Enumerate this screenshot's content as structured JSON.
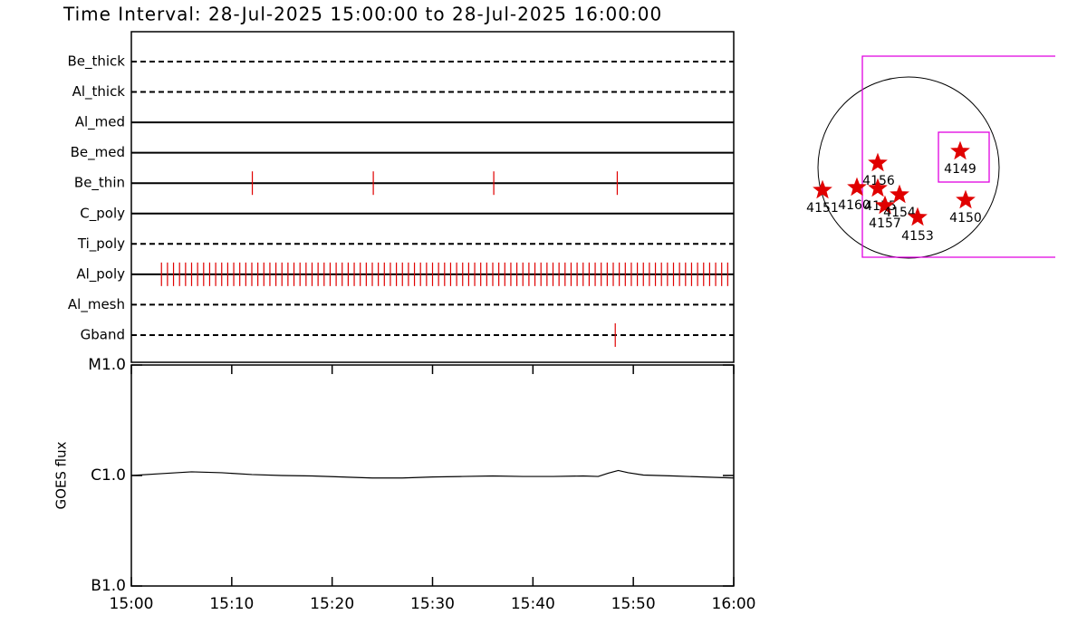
{
  "title": "Time Interval: 28-Jul-2025 15:00:00 to 28-Jul-2025 16:00:00",
  "chart_data": [
    {
      "type": "timeline",
      "color": "#e00000",
      "xlim": [
        0,
        60
      ],
      "rows": [
        {
          "name": "Be_thick",
          "line": "dashed",
          "events": []
        },
        {
          "name": "Al_thick",
          "line": "dashed",
          "events": []
        },
        {
          "name": "Al_med",
          "line": "solid",
          "events": []
        },
        {
          "name": "Be_med",
          "line": "solid",
          "events": []
        },
        {
          "name": "Be_thin",
          "line": "solid",
          "events": [
            12.05,
            24.1,
            36.1,
            48.4
          ]
        },
        {
          "name": "C_poly",
          "line": "solid",
          "events": []
        },
        {
          "name": "Ti_poly",
          "line": "dashed",
          "events": []
        },
        {
          "name": "Al_poly",
          "line": "solid",
          "events": [
            3,
            3.6,
            4.2,
            4.8,
            5.4,
            6,
            6.6,
            7.2,
            7.8,
            8.4,
            9,
            9.6,
            10.2,
            10.8,
            11.4,
            12,
            12.6,
            13.2,
            13.8,
            14.4,
            15,
            15.6,
            16.2,
            16.8,
            17.4,
            18,
            18.6,
            19.2,
            19.8,
            20.4,
            21,
            21.6,
            22.2,
            22.8,
            23.4,
            24,
            24.6,
            25.2,
            25.8,
            26.4,
            27,
            27.6,
            28.2,
            28.8,
            29.4,
            30,
            30.6,
            31.2,
            31.8,
            32.4,
            33,
            33.6,
            34.2,
            34.8,
            35.4,
            36,
            36.6,
            37.2,
            37.8,
            38.4,
            39,
            39.6,
            40.2,
            40.8,
            41.4,
            42,
            42.6,
            43.2,
            43.8,
            44.4,
            45,
            45.6,
            46.2,
            46.8,
            47.4,
            48,
            48.6,
            49.2,
            49.8,
            50.4,
            51,
            51.6,
            52.2,
            52.8,
            53.4,
            54,
            54.6,
            55.2,
            55.8,
            56.4,
            57,
            57.6,
            58.2,
            58.8,
            59.4
          ]
        },
        {
          "name": "Al_mesh",
          "line": "dashed",
          "events": []
        },
        {
          "name": "Gband",
          "line": "dashed",
          "events": [
            48.2
          ]
        }
      ]
    },
    {
      "type": "line",
      "ylabel": "GOES flux",
      "color": "#000000",
      "log": true,
      "xlim": [
        0,
        60
      ],
      "xticks": [
        {
          "value": 0,
          "label": "15:00"
        },
        {
          "value": 10,
          "label": "15:10"
        },
        {
          "value": 20,
          "label": "15:20"
        },
        {
          "value": 30,
          "label": "15:30"
        },
        {
          "value": 40,
          "label": "15:40"
        },
        {
          "value": 50,
          "label": "15:50"
        },
        {
          "value": 60,
          "label": "16:00"
        }
      ],
      "ylim": [
        1e-07,
        1e-05
      ],
      "yticks": [
        {
          "value": 1e-05,
          "label": "M1.0"
        },
        {
          "value": 1e-06,
          "label": "C1.0"
        },
        {
          "value": 1e-07,
          "label": "B1.0"
        }
      ],
      "x": [
        0,
        3,
        6,
        9,
        12,
        15,
        18,
        21,
        24,
        27,
        30,
        33,
        36,
        39,
        42,
        45,
        46.5,
        47.5,
        48.5,
        49.5,
        51,
        54,
        57,
        60
      ],
      "values": [
        1e-06,
        1.04e-06,
        1.08e-06,
        1.06e-06,
        1.02e-06,
        1e-06,
        9.9e-07,
        9.7e-07,
        9.5e-07,
        9.5e-07,
        9.7e-07,
        9.8e-07,
        9.9e-07,
        9.8e-07,
        9.8e-07,
        9.9e-07,
        9.8e-07,
        1.05e-06,
        1.11e-06,
        1.06e-06,
        1.01e-06,
        9.9e-07,
        9.7e-07,
        9.5e-07
      ]
    }
  ],
  "map": {
    "regions": [
      "4149",
      "4150",
      "4151",
      "4160",
      "4156",
      "4155",
      "4157",
      "4154",
      "4153"
    ]
  }
}
